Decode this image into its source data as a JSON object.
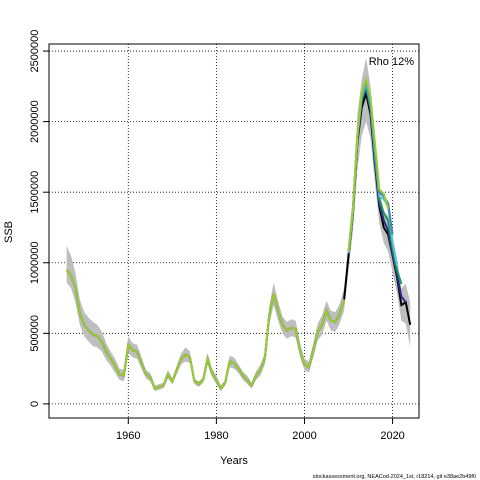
{
  "chart_data": {
    "type": "line",
    "xlabel": "Years",
    "ylabel": "SSB",
    "annotation": "Rho 12%",
    "footer": "stockassessment.org, NEACod-2024_1st, r18214, git e38ae2b49f0",
    "xlim": [
      1942,
      2026
    ],
    "ylim": [
      -100000,
      2550000
    ],
    "x_ticks": [
      1960,
      1980,
      2000,
      2020
    ],
    "y_ticks": [
      0,
      500000,
      1000000,
      1500000,
      2000000,
      2500000
    ],
    "grid": true,
    "colors": {
      "band": "#bebebe",
      "main_line": "#000000",
      "overlay": "#9acd32",
      "peel_1": "#2c2c8c",
      "peel_2": "#1a9850",
      "peel_3": "#5bc0de",
      "peel_4": "#4682b4"
    },
    "series": [
      {
        "role": "main",
        "x": [
          1946,
          1947,
          1948,
          1949,
          1950,
          1951,
          1952,
          1953,
          1954,
          1955,
          1956,
          1957,
          1958,
          1959,
          1960,
          1961,
          1962,
          1963,
          1964,
          1965,
          1966,
          1967,
          1968,
          1969,
          1970,
          1971,
          1972,
          1973,
          1974,
          1975,
          1976,
          1977,
          1978,
          1979,
          1980,
          1981,
          1982,
          1983,
          1984,
          1985,
          1986,
          1987,
          1988,
          1989,
          1990,
          1991,
          1992,
          1993,
          1994,
          1995,
          1996,
          1997,
          1998,
          1999,
          2000,
          2001,
          2002,
          2003,
          2004,
          2005,
          2006,
          2007,
          2008,
          2009,
          2010,
          2011,
          2012,
          2013,
          2014,
          2015,
          2016,
          2017,
          2018,
          2019,
          2020,
          2021,
          2022,
          2023,
          2024
        ],
        "values": [
          950000,
          910000,
          820000,
          640000,
          560000,
          520000,
          490000,
          480000,
          440000,
          370000,
          320000,
          270000,
          210000,
          200000,
          420000,
          380000,
          370000,
          290000,
          210000,
          190000,
          110000,
          120000,
          130000,
          210000,
          160000,
          240000,
          320000,
          350000,
          330000,
          160000,
          140000,
          170000,
          320000,
          220000,
          170000,
          110000,
          150000,
          300000,
          290000,
          250000,
          200000,
          170000,
          130000,
          200000,
          240000,
          320000,
          630000,
          780000,
          660000,
          560000,
          520000,
          540000,
          530000,
          380000,
          280000,
          260000,
          380000,
          510000,
          560000,
          660000,
          590000,
          580000,
          640000,
          740000,
          1050000,
          1350000,
          1850000,
          2100000,
          2200000,
          2050000,
          1700000,
          1400000,
          1250000,
          1200000,
          1050000,
          900000,
          700000,
          720000,
          560000
        ],
        "lower": [
          860000,
          820000,
          720000,
          560000,
          480000,
          440000,
          410000,
          400000,
          370000,
          310000,
          270000,
          220000,
          170000,
          160000,
          360000,
          330000,
          320000,
          250000,
          180000,
          160000,
          90000,
          100000,
          110000,
          180000,
          140000,
          210000,
          280000,
          300000,
          290000,
          140000,
          120000,
          150000,
          280000,
          190000,
          140000,
          90000,
          130000,
          260000,
          250000,
          220000,
          170000,
          140000,
          110000,
          170000,
          200000,
          280000,
          560000,
          700000,
          590000,
          500000,
          460000,
          480000,
          470000,
          330000,
          240000,
          220000,
          330000,
          450000,
          490000,
          590000,
          520000,
          510000,
          570000,
          660000,
          950000,
          1220000,
          1650000,
          1900000,
          2000000,
          1880000,
          1560000,
          1280000,
          1140000,
          1080000,
          930000,
          780000,
          590000,
          570000,
          400000
        ],
        "upper": [
          1120000,
          1050000,
          930000,
          740000,
          650000,
          610000,
          580000,
          560000,
          510000,
          430000,
          370000,
          320000,
          250000,
          240000,
          480000,
          430000,
          420000,
          330000,
          240000,
          220000,
          130000,
          140000,
          150000,
          240000,
          180000,
          270000,
          360000,
          400000,
          370000,
          180000,
          160000,
          190000,
          360000,
          250000,
          200000,
          130000,
          170000,
          340000,
          330000,
          280000,
          230000,
          200000,
          150000,
          230000,
          280000,
          360000,
          690000,
          860000,
          730000,
          620000,
          580000,
          600000,
          590000,
          430000,
          320000,
          300000,
          430000,
          570000,
          630000,
          730000,
          660000,
          650000,
          710000,
          820000,
          1150000,
          1480000,
          2050000,
          2300000,
          2450000,
          2250000,
          1850000,
          1520000,
          1370000,
          1330000,
          1180000,
          1030000,
          820000,
          850000,
          720000
        ]
      },
      {
        "role": "peel",
        "x": [
          2010,
          2011,
          2012,
          2013,
          2014,
          2015,
          2016,
          2017,
          2018,
          2019,
          2020,
          2021,
          2022,
          2023
        ],
        "values": [
          1060000,
          1360000,
          1870000,
          2140000,
          2230000,
          2080000,
          1720000,
          1420000,
          1300000,
          1230000,
          1060000,
          920000,
          760000,
          720000
        ]
      },
      {
        "role": "peel",
        "x": [
          2010,
          2011,
          2012,
          2013,
          2014,
          2015,
          2016,
          2017,
          2018,
          2019,
          2020,
          2021,
          2022
        ],
        "values": [
          1070000,
          1370000,
          1880000,
          2160000,
          2250000,
          2100000,
          1750000,
          1450000,
          1350000,
          1300000,
          1100000,
          950000,
          850000
        ]
      },
      {
        "role": "peel",
        "x": [
          2010,
          2011,
          2012,
          2013,
          2014,
          2015,
          2016,
          2017,
          2018,
          2019,
          2020,
          2021
        ],
        "values": [
          1070000,
          1370000,
          1890000,
          2180000,
          2270000,
          2130000,
          1790000,
          1470000,
          1450000,
          1400000,
          1150000,
          980000
        ]
      },
      {
        "role": "peel",
        "x": [
          2010,
          2011,
          2012,
          2013,
          2014,
          2015,
          2016,
          2017,
          2018,
          2019,
          2020
        ],
        "values": [
          1080000,
          1380000,
          1890000,
          2200000,
          2290000,
          2150000,
          1820000,
          1500000,
          1470000,
          1420000,
          1200000
        ]
      },
      {
        "role": "peel",
        "x": [
          2010,
          2011,
          2012,
          2013,
          2014,
          2015,
          2016,
          2017,
          2018,
          2019
        ],
        "values": [
          1080000,
          1380000,
          1900000,
          2210000,
          2300000,
          2170000,
          1850000,
          1520000,
          1490000,
          1380000
        ]
      }
    ]
  }
}
